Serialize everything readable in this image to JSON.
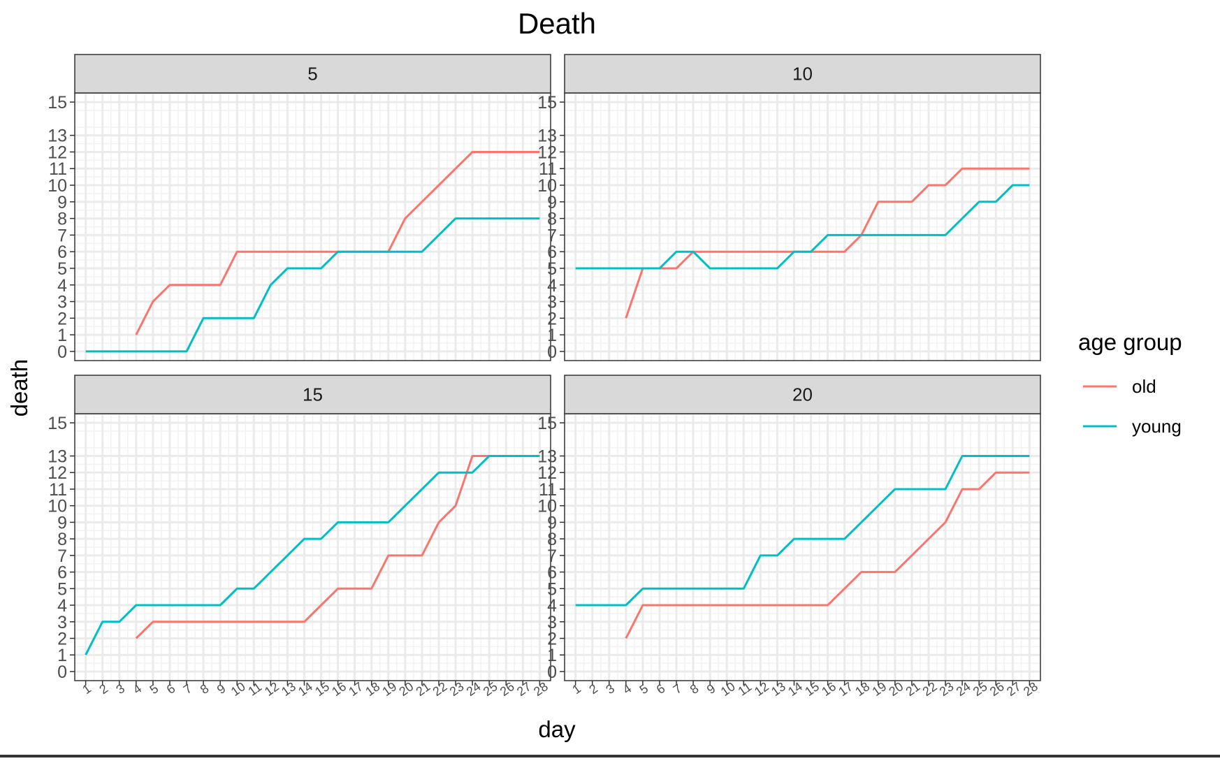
{
  "chart_data": {
    "type": "line",
    "title": "Death",
    "xlabel": "day",
    "ylabel": "death",
    "x": [
      1,
      2,
      3,
      4,
      5,
      6,
      7,
      8,
      9,
      10,
      11,
      12,
      13,
      14,
      15,
      16,
      17,
      18,
      19,
      20,
      21,
      22,
      23,
      24,
      25,
      26,
      27,
      28
    ],
    "y_ticks": [
      0,
      1,
      2,
      3,
      4,
      5,
      6,
      7,
      8,
      9,
      10,
      11,
      12,
      13,
      15
    ],
    "ylim": [
      0,
      15
    ],
    "grid": true,
    "legend": {
      "title": "age group",
      "position": "right",
      "entries": [
        {
          "name": "old",
          "color": "#F8766D"
        },
        {
          "name": "young",
          "color": "#00BFC4"
        }
      ]
    },
    "panels": [
      {
        "label": "5",
        "series": [
          {
            "name": "old",
            "color": "#F8766D",
            "x": [
              4,
              5,
              6,
              7,
              8,
              9,
              10,
              11,
              12,
              13,
              14,
              15,
              16,
              17,
              18,
              19,
              20,
              21,
              22,
              23,
              24,
              25,
              26,
              27,
              28
            ],
            "values": [
              1,
              3,
              4,
              4,
              4,
              4,
              6,
              6,
              6,
              6,
              6,
              6,
              6,
              6,
              6,
              6,
              8,
              9,
              10,
              11,
              12,
              12,
              12,
              12,
              12
            ]
          },
          {
            "name": "young",
            "color": "#00BFC4",
            "x": [
              1,
              2,
              3,
              4,
              5,
              6,
              7,
              8,
              9,
              10,
              11,
              12,
              13,
              14,
              15,
              16,
              17,
              18,
              19,
              20,
              21,
              22,
              23,
              24,
              25,
              26,
              27,
              28
            ],
            "values": [
              0,
              0,
              0,
              0,
              0,
              0,
              0,
              2,
              2,
              2,
              2,
              4,
              5,
              5,
              5,
              6,
              6,
              6,
              6,
              6,
              6,
              7,
              8,
              8,
              8,
              8,
              8,
              8
            ]
          }
        ]
      },
      {
        "label": "10",
        "series": [
          {
            "name": "old",
            "color": "#F8766D",
            "x": [
              4,
              5,
              6,
              7,
              8,
              9,
              10,
              11,
              12,
              13,
              14,
              15,
              16,
              17,
              18,
              19,
              20,
              21,
              22,
              23,
              24,
              25,
              26,
              27,
              28
            ],
            "values": [
              2,
              5,
              5,
              5,
              6,
              6,
              6,
              6,
              6,
              6,
              6,
              6,
              6,
              6,
              7,
              9,
              9,
              9,
              10,
              10,
              11,
              11,
              11,
              11,
              11
            ]
          },
          {
            "name": "young",
            "color": "#00BFC4",
            "x": [
              1,
              2,
              3,
              4,
              5,
              6,
              7,
              8,
              9,
              10,
              11,
              12,
              13,
              14,
              15,
              16,
              17,
              18,
              19,
              20,
              21,
              22,
              23,
              24,
              25,
              26,
              27,
              28
            ],
            "values": [
              5,
              5,
              5,
              5,
              5,
              5,
              6,
              6,
              5,
              5,
              5,
              5,
              5,
              6,
              6,
              7,
              7,
              7,
              7,
              7,
              7,
              7,
              7,
              8,
              9,
              9,
              10,
              10
            ]
          }
        ]
      },
      {
        "label": "15",
        "series": [
          {
            "name": "old",
            "color": "#F8766D",
            "x": [
              4,
              5,
              6,
              7,
              8,
              9,
              10,
              11,
              12,
              13,
              14,
              15,
              16,
              17,
              18,
              19,
              20,
              21,
              22,
              23,
              24,
              25,
              26,
              27,
              28
            ],
            "values": [
              2,
              3,
              3,
              3,
              3,
              3,
              3,
              3,
              3,
              3,
              3,
              4,
              5,
              5,
              5,
              7,
              7,
              7,
              9,
              10,
              13,
              13,
              13,
              13,
              13
            ]
          },
          {
            "name": "young",
            "color": "#00BFC4",
            "x": [
              1,
              2,
              3,
              4,
              5,
              6,
              7,
              8,
              9,
              10,
              11,
              12,
              13,
              14,
              15,
              16,
              17,
              18,
              19,
              20,
              21,
              22,
              23,
              24,
              25,
              26,
              27,
              28
            ],
            "values": [
              1,
              3,
              3,
              4,
              4,
              4,
              4,
              4,
              4,
              5,
              5,
              6,
              7,
              8,
              8,
              9,
              9,
              9,
              9,
              10,
              11,
              12,
              12,
              12,
              13,
              13,
              13,
              13
            ]
          }
        ]
      },
      {
        "label": "20",
        "series": [
          {
            "name": "old",
            "color": "#F8766D",
            "x": [
              4,
              5,
              6,
              7,
              8,
              9,
              10,
              11,
              12,
              13,
              14,
              15,
              16,
              17,
              18,
              19,
              20,
              21,
              22,
              23,
              24,
              25,
              26,
              27,
              28
            ],
            "values": [
              2,
              4,
              4,
              4,
              4,
              4,
              4,
              4,
              4,
              4,
              4,
              4,
              4,
              5,
              6,
              6,
              6,
              7,
              8,
              9,
              11,
              11,
              12,
              12,
              12
            ]
          },
          {
            "name": "young",
            "color": "#00BFC4",
            "x": [
              1,
              2,
              3,
              4,
              5,
              6,
              7,
              8,
              9,
              10,
              11,
              12,
              13,
              14,
              15,
              16,
              17,
              18,
              19,
              20,
              21,
              22,
              23,
              24,
              25,
              26,
              27,
              28
            ],
            "values": [
              4,
              4,
              4,
              4,
              5,
              5,
              5,
              5,
              5,
              5,
              5,
              7,
              7,
              8,
              8,
              8,
              8,
              9,
              10,
              11,
              11,
              11,
              11,
              13,
              13,
              13,
              13,
              13
            ]
          }
        ]
      }
    ]
  }
}
